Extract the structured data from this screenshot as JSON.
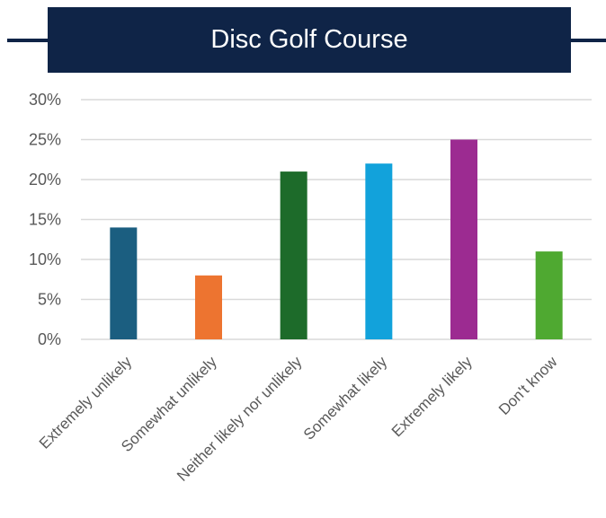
{
  "chart_data": {
    "type": "bar",
    "title": "Disc Golf Course",
    "xlabel": "",
    "ylabel": "",
    "ylim": [
      0,
      30
    ],
    "yticks": [
      0,
      5,
      10,
      15,
      20,
      25,
      30
    ],
    "ytick_suffix": "%",
    "grid": true,
    "legend": "none",
    "categories": [
      "Extremely unlikely",
      "Somewhat unlikely",
      "Neither likely nor unlikely",
      "Somewhat likely",
      "Extremely likely",
      "Don't know"
    ],
    "values": [
      14,
      8,
      21,
      22,
      25,
      11
    ],
    "colors": [
      "#1b5e80",
      "#ed7430",
      "#1d6b2a",
      "#12a2db",
      "#9c2b91",
      "#4fa931"
    ]
  },
  "colors": {
    "header_bg": "#0f2447",
    "gridline": "#d9d9d9",
    "text": "#595959"
  }
}
